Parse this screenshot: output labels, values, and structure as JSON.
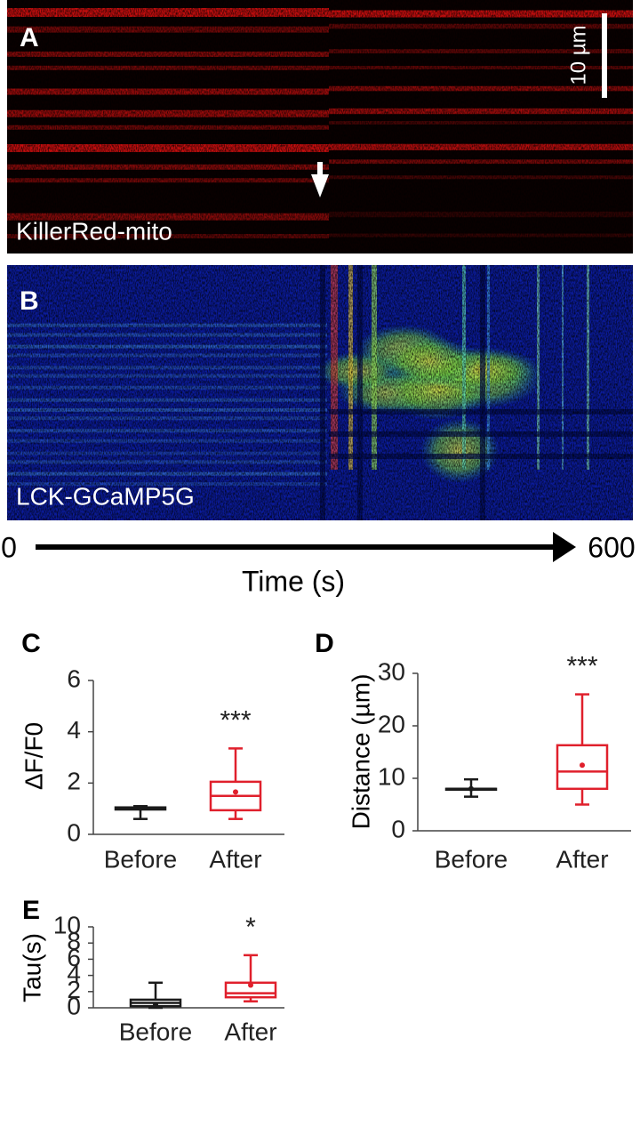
{
  "panels": [
    {
      "label": "A",
      "scale_bar": "10 µm",
      "caption": "KillerRed-mito"
    },
    {
      "label": "B",
      "caption": "LCK-GCaMP5G"
    }
  ],
  "time_axis": {
    "start": 0,
    "end": 600,
    "label": "Time (s)"
  },
  "chart_data": [
    {
      "type": "box",
      "panel": "C",
      "ylabel": "ΔF/F0",
      "categories": [
        "Before",
        "After"
      ],
      "boxes": [
        {
          "color": "#1a1a1a",
          "min": 0.6,
          "q1": 0.97,
          "median": 1.0,
          "q3": 1.05,
          "max": 1.1,
          "mean": 1.02
        },
        {
          "color": "#e0202c",
          "min": 0.6,
          "q1": 0.94,
          "median": 1.5,
          "q3": 2.05,
          "max": 3.35,
          "mean": 1.65
        }
      ],
      "annotation": "***",
      "ylim": [
        0,
        6
      ],
      "yticks": [
        0,
        2,
        4,
        6
      ]
    },
    {
      "type": "box",
      "panel": "D",
      "ylabel": "Distance (µm)",
      "categories": [
        "Before",
        "After"
      ],
      "boxes": [
        {
          "color": "#1a1a1a",
          "min": 6.5,
          "q1": 8,
          "median": 8,
          "q3": 8,
          "max": 9.8,
          "mean": 8
        },
        {
          "color": "#e0202c",
          "min": 5,
          "q1": 8,
          "median": 11.3,
          "q3": 16.3,
          "max": 26,
          "mean": 12.5
        }
      ],
      "annotation": "***",
      "ylim": [
        0,
        30
      ],
      "yticks": [
        0,
        10,
        20,
        30
      ]
    },
    {
      "type": "box",
      "panel": "E",
      "ylabel": "Tau(s)",
      "categories": [
        "Before",
        "After"
      ],
      "boxes": [
        {
          "color": "#1a1a1a",
          "min": 0,
          "q1": 0.2,
          "median": 0.6,
          "q3": 1.0,
          "max": 3.1,
          "mean": 0.4
        },
        {
          "color": "#e0202c",
          "min": 0.8,
          "q1": 1.3,
          "median": 1.8,
          "q3": 3.1,
          "max": 6.5,
          "mean": 2.8
        }
      ],
      "annotation": "*",
      "ylim": [
        0,
        10
      ],
      "yticks": [
        0,
        2,
        4,
        6,
        8,
        10
      ]
    }
  ]
}
